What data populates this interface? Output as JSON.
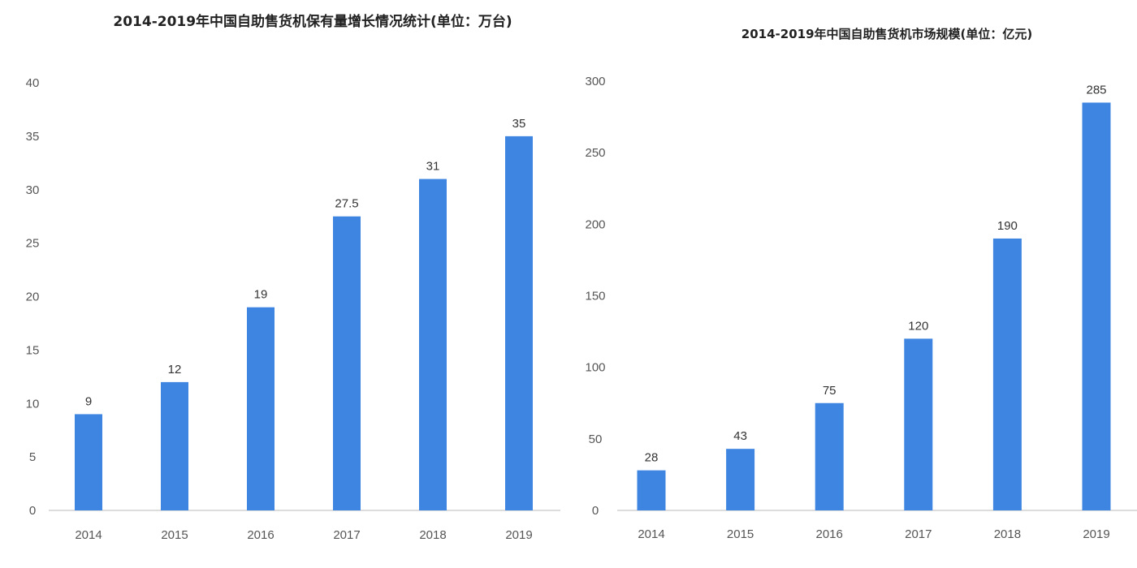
{
  "chart_data": [
    {
      "type": "bar",
      "title": "2014-2019年中国自助售货机保有量增长情况统计(单位：万台)",
      "categories": [
        "2014",
        "2015",
        "2016",
        "2017",
        "2018",
        "2019"
      ],
      "values": [
        9,
        12,
        19,
        27.5,
        31,
        35
      ],
      "data_labels": [
        "9",
        "12",
        "19",
        "27.5",
        "31",
        "35"
      ],
      "ylim": [
        0,
        40
      ],
      "yticks": [
        "0",
        "5",
        "10",
        "15",
        "20",
        "25",
        "30",
        "35",
        "40"
      ],
      "xlabel": "",
      "ylabel": "",
      "grid": false,
      "bar_color": "#3d85e0"
    },
    {
      "type": "bar",
      "title": "2014-2019年中国自助售货机市场规模(单位：亿元)",
      "categories": [
        "2014",
        "2015",
        "2016",
        "2017",
        "2018",
        "2019"
      ],
      "values": [
        28,
        43,
        75,
        120,
        190,
        285
      ],
      "data_labels": [
        "28",
        "43",
        "75",
        "120",
        "190",
        "285"
      ],
      "ylim": [
        0,
        300
      ],
      "yticks": [
        "0",
        "50",
        "100",
        "150",
        "200",
        "250",
        "300"
      ],
      "xlabel": "",
      "ylabel": "",
      "grid": false,
      "bar_color": "#3d85e0"
    }
  ]
}
